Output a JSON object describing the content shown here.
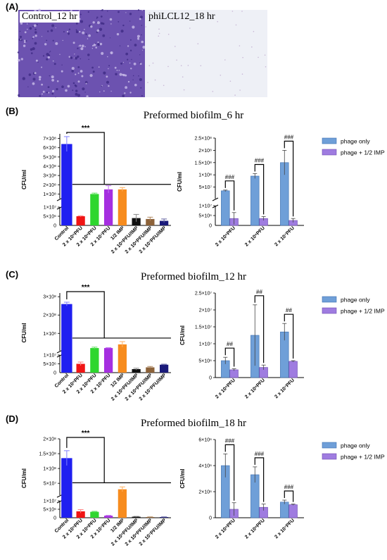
{
  "panels": {
    "a": "(A)",
    "b": "(B)",
    "c": "(C)",
    "d": "(D)",
    "a_left_caption": "Control_12 hr",
    "a_right_caption": "phiLCL12_18 hr"
  },
  "colors": {
    "control": "#1f1ff0",
    "red": "#f01414",
    "green": "#2ed62e",
    "purple": "#a52ee0",
    "orange": "#f78c1e",
    "black": "#111111",
    "brown": "#8c6239",
    "navy": "#1a1a7a",
    "phage_only": "#6f9fd8",
    "phage_imp": "#9f7ce0",
    "stain": "#6c52b0",
    "plain": "#eef0f6"
  },
  "common": {
    "ylabel": "CFU/ml",
    "left_categories": [
      "Control",
      "2 x 10⁵PFU",
      "2 x 10⁶PFU",
      "2 x 10⁷PFU",
      "1/2 IMP",
      "2 x 10⁵PFU/IMP",
      "2 x 10⁶PFU/IMP",
      "2 x 10⁷PFU/IMP"
    ],
    "right_categories": [
      "2 x 10⁵PFU",
      "2 x 10⁶PFU",
      "2 x 10⁷PFU"
    ],
    "legend": [
      "phage only",
      "phage + 1/2 IMP"
    ],
    "left_sig": "***"
  },
  "chart_data": [
    {
      "id": "B-left",
      "type": "bar",
      "title": "Preformed biofilm_6 hr",
      "broken_axis": true,
      "lower": {
        "ylim": [
          0,
          10000000
        ],
        "ticks": [
          "5×10⁶",
          "1×10⁷"
        ]
      },
      "upper": {
        "ylim": [
          50000000,
          750000000
        ],
        "ticks": [
          "1×10⁸",
          "2×10⁸",
          "3×10⁸",
          "4×10⁸",
          "5×10⁸",
          "6×10⁸",
          "7×10⁸"
        ]
      },
      "values": [
        640000000,
        5000000,
        100000000,
        150000000,
        150000000,
        4000000,
        3500000,
        2500000
      ],
      "errors": [
        80000000,
        300000,
        10000000,
        40000000,
        20000000,
        2000000,
        1000000,
        1000000
      ],
      "annotation": "***"
    },
    {
      "id": "B-right",
      "type": "bar",
      "broken_axis": true,
      "lower": {
        "ylim": [
          0,
          10000000
        ],
        "ticks": [
          "5×10⁶",
          "1×10⁷"
        ]
      },
      "upper": {
        "ylim": [
          3000000,
          250000000
        ],
        "ticks": [
          "5×10⁷",
          "1×10⁸",
          "1.5×10⁸",
          "2×10⁸",
          "2.5×10⁸"
        ]
      },
      "series": [
        {
          "values": [
            35000000,
            95000000,
            150000000
          ],
          "errors": [
            3000000,
            10000000,
            50000000
          ]
        },
        {
          "values": [
            3500000,
            3500000,
            2500000
          ],
          "errors": [
            3000000,
            1000000,
            1000000
          ]
        }
      ],
      "annotations": [
        "###",
        "###",
        "###"
      ]
    },
    {
      "id": "C-left",
      "type": "bar",
      "title": "Preformed biofilm_12 hr",
      "broken_axis": true,
      "lower": {
        "ylim": [
          0,
          10000000
        ],
        "ticks": [
          "5×10⁶",
          "1×10⁷"
        ]
      },
      "upper": {
        "ylim": [
          5000000,
          320000000
        ],
        "ticks": [
          "1×10⁸",
          "2×10⁸",
          "3×10⁸"
        ]
      },
      "values": [
        260000000,
        5000000,
        20000000,
        20000000,
        40000000,
        2000000,
        3000000,
        4500000
      ],
      "errors": [
        10000000,
        1000000,
        5000000,
        2000000,
        15000000,
        500000,
        500000,
        300000
      ],
      "annotation": "***"
    },
    {
      "id": "C-right",
      "type": "bar",
      "ylim": [
        0,
        25000000
      ],
      "ticks": [
        "0",
        "5×10⁶",
        "1×10⁷",
        "1.5×10⁷",
        "2×10⁷",
        "2.5×10⁷"
      ],
      "series": [
        {
          "values": [
            5000000,
            12500000,
            13500000
          ],
          "errors": [
            1000000,
            9000000,
            2500000
          ]
        },
        {
          "values": [
            2300000,
            3000000,
            4800000
          ],
          "errors": [
            300000,
            700000,
            200000
          ]
        }
      ],
      "annotations": [
        "##",
        "##",
        "##"
      ]
    },
    {
      "id": "D-left",
      "type": "bar",
      "title": "Preformed biofilm_18 hr",
      "broken_axis": true,
      "lower": {
        "ylim": [
          0,
          10000000
        ],
        "ticks": [
          "5×10⁶",
          "1×10⁷"
        ]
      },
      "upper": {
        "ylim": [
          10000000,
          200000000
        ],
        "ticks": [
          "5×10⁷",
          "1×10⁸",
          "1.5×10⁸",
          "2×10⁸"
        ]
      },
      "values": [
        135000000,
        3800000,
        3500000,
        1200000,
        30000000,
        600000,
        400000,
        400000
      ],
      "errors": [
        25000000,
        1000000,
        300000,
        200000,
        8000000,
        200000,
        100000,
        100000
      ],
      "annotation": "***"
    },
    {
      "id": "D-right",
      "type": "bar",
      "ylim": [
        0,
        6000000
      ],
      "ticks": [
        "0",
        "2×10⁶",
        "4×10⁶",
        "6×10⁶"
      ],
      "series": [
        {
          "values": [
            4000000,
            3300000,
            1200000
          ],
          "errors": [
            900000,
            600000,
            150000
          ]
        },
        {
          "values": [
            650000,
            800000,
            1000000
          ],
          "errors": [
            500000,
            250000,
            50000
          ]
        }
      ],
      "annotations": [
        "###",
        "###",
        "###"
      ]
    }
  ]
}
